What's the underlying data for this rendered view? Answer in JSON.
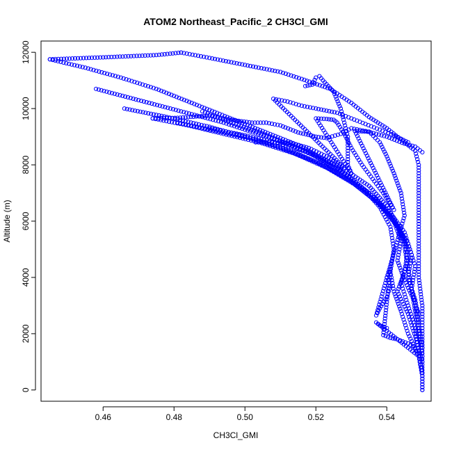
{
  "chart_data": {
    "type": "scatter",
    "title": "ATOM2 Northeast_Pacific_2 CH3Cl_GMI",
    "xlabel": "CH3Cl_GMI",
    "ylabel": "Altitude (m)",
    "xlim": [
      0.4425,
      0.5525
    ],
    "ylim": [
      -400,
      12400
    ],
    "x_ticks": [
      0.46,
      0.48,
      0.5,
      0.52,
      0.54
    ],
    "x_tick_labels": [
      "0.46",
      "0.48",
      "0.50",
      "0.52",
      "0.54"
    ],
    "y_ticks": [
      0,
      2000,
      4000,
      6000,
      8000,
      10000,
      12000
    ],
    "y_tick_labels": [
      "0",
      "2000",
      "4000",
      "6000",
      "8000",
      "10000",
      "12000"
    ],
    "grid": false,
    "marker": "open-circle",
    "marker_color": "#0000ff",
    "series": [
      {
        "trace_points": [
          [
            0.445,
            11750
          ],
          [
            0.46,
            11820
          ],
          [
            0.475,
            11900
          ],
          [
            0.482,
            11990
          ],
          [
            0.482,
            11990
          ],
          [
            0.49,
            11800
          ],
          [
            0.5,
            11550
          ],
          [
            0.51,
            11300
          ],
          [
            0.516,
            11050
          ],
          [
            0.524,
            10700
          ],
          [
            0.53,
            10200
          ],
          [
            0.535,
            9700
          ],
          [
            0.54,
            9300
          ],
          [
            0.545,
            8800
          ],
          [
            0.548,
            8500
          ],
          [
            0.549,
            8000
          ],
          [
            0.549,
            7000
          ],
          [
            0.549,
            6000
          ],
          [
            0.549,
            5000
          ],
          [
            0.549,
            4000
          ],
          [
            0.55,
            3000
          ],
          [
            0.55,
            2000
          ],
          [
            0.55,
            1000
          ],
          [
            0.55,
            0
          ],
          [
            0.445,
            11750
          ],
          [
            0.455,
            11450
          ],
          [
            0.465,
            11100
          ],
          [
            0.475,
            10700
          ],
          [
            0.485,
            10200
          ],
          [
            0.495,
            9700
          ],
          [
            0.505,
            9200
          ],
          [
            0.515,
            8700
          ],
          [
            0.525,
            8000
          ],
          [
            0.533,
            7200
          ],
          [
            0.538,
            6500
          ],
          [
            0.541,
            5800
          ],
          [
            0.542,
            5000
          ],
          [
            0.541,
            4200
          ],
          [
            0.542,
            3500
          ],
          [
            0.544,
            2800
          ],
          [
            0.546,
            2000
          ],
          [
            0.549,
            1200
          ],
          [
            0.55,
            500
          ],
          [
            0.55,
            0
          ],
          [
            0.458,
            10700
          ],
          [
            0.47,
            10300
          ],
          [
            0.482,
            9900
          ],
          [
            0.494,
            9500
          ],
          [
            0.506,
            9000
          ],
          [
            0.517,
            8500
          ],
          [
            0.527,
            7800
          ],
          [
            0.535,
            7000
          ],
          [
            0.541,
            6200
          ],
          [
            0.545,
            5400
          ],
          [
            0.546,
            4600
          ],
          [
            0.544,
            3800
          ],
          [
            0.546,
            3000
          ],
          [
            0.548,
            2200
          ],
          [
            0.549,
            1400
          ],
          [
            0.55,
            600
          ],
          [
            0.466,
            10000
          ],
          [
            0.478,
            9700
          ],
          [
            0.49,
            9350
          ],
          [
            0.5,
            9000
          ],
          [
            0.51,
            8600
          ],
          [
            0.52,
            8100
          ],
          [
            0.529,
            7500
          ],
          [
            0.537,
            6800
          ],
          [
            0.542,
            6000
          ],
          [
            0.546,
            5200
          ],
          [
            0.548,
            4400
          ],
          [
            0.547,
            3600
          ],
          [
            0.548,
            2800
          ],
          [
            0.549,
            2000
          ],
          [
            0.55,
            1200
          ],
          [
            0.474,
            9650
          ],
          [
            0.484,
            9400
          ],
          [
            0.494,
            9100
          ],
          [
            0.504,
            8800
          ],
          [
            0.514,
            8400
          ],
          [
            0.523,
            7900
          ],
          [
            0.531,
            7300
          ],
          [
            0.538,
            6600
          ],
          [
            0.543,
            5800
          ],
          [
            0.546,
            5000
          ],
          [
            0.545,
            4200
          ],
          [
            0.543,
            3500
          ],
          [
            0.546,
            2700
          ],
          [
            0.548,
            1900
          ],
          [
            0.55,
            1000
          ],
          [
            0.481,
            9500
          ],
          [
            0.492,
            9200
          ],
          [
            0.503,
            8900
          ],
          [
            0.513,
            8500
          ],
          [
            0.522,
            8000
          ],
          [
            0.53,
            7400
          ],
          [
            0.537,
            6700
          ],
          [
            0.542,
            6000
          ],
          [
            0.544,
            5300
          ],
          [
            0.543,
            4600
          ],
          [
            0.545,
            3900
          ],
          [
            0.548,
            3100
          ],
          [
            0.549,
            2300
          ],
          [
            0.55,
            1500
          ],
          [
            0.488,
            9900
          ],
          [
            0.496,
            9500
          ],
          [
            0.504,
            9150
          ],
          [
            0.512,
            8750
          ],
          [
            0.52,
            8300
          ],
          [
            0.528,
            7700
          ],
          [
            0.535,
            7000
          ],
          [
            0.541,
            6300
          ],
          [
            0.545,
            5600
          ],
          [
            0.547,
            4800
          ],
          [
            0.546,
            4000
          ],
          [
            0.548,
            3200
          ],
          [
            0.549,
            2400
          ],
          [
            0.49,
            9300
          ],
          [
            0.5,
            9050
          ],
          [
            0.51,
            8750
          ],
          [
            0.52,
            8350
          ],
          [
            0.528,
            7850
          ],
          [
            0.535,
            7250
          ],
          [
            0.54,
            6550
          ],
          [
            0.543,
            5850
          ],
          [
            0.545,
            5100
          ],
          [
            0.546,
            4300
          ],
          [
            0.547,
            3500
          ],
          [
            0.549,
            2700
          ],
          [
            0.474,
            9650
          ],
          [
            0.478,
            9660
          ],
          [
            0.481,
            9670
          ],
          [
            0.49,
            9750
          ],
          [
            0.496,
            9600
          ],
          [
            0.502,
            9500
          ],
          [
            0.506,
            9500
          ],
          [
            0.51,
            9400
          ],
          [
            0.515,
            9150
          ],
          [
            0.52,
            9000
          ],
          [
            0.523,
            8950
          ],
          [
            0.527,
            9100
          ],
          [
            0.53,
            9300
          ],
          [
            0.534,
            9200
          ],
          [
            0.54,
            9000
          ],
          [
            0.545,
            8750
          ],
          [
            0.548,
            8650
          ],
          [
            0.55,
            8450
          ],
          [
            0.503,
            8800
          ],
          [
            0.506,
            8800
          ],
          [
            0.51,
            8790
          ],
          [
            0.513,
            8780
          ],
          [
            0.518,
            8600
          ],
          [
            0.523,
            8300
          ],
          [
            0.528,
            7900
          ],
          [
            0.508,
            10350
          ],
          [
            0.512,
            10250
          ],
          [
            0.516,
            10100
          ],
          [
            0.52,
            10000
          ],
          [
            0.526,
            9850
          ],
          [
            0.53,
            9650
          ],
          [
            0.534,
            9450
          ],
          [
            0.538,
            9250
          ],
          [
            0.542,
            9050
          ],
          [
            0.546,
            8800
          ],
          [
            0.517,
            10800
          ],
          [
            0.519,
            10850
          ],
          [
            0.52,
            11100
          ],
          [
            0.521,
            11150
          ],
          [
            0.522,
            11000
          ],
          [
            0.525,
            10600
          ],
          [
            0.527,
            10000
          ],
          [
            0.528,
            9500
          ],
          [
            0.529,
            9000
          ],
          [
            0.529,
            8500
          ],
          [
            0.529,
            8000
          ],
          [
            0.53,
            7700
          ],
          [
            0.52,
            9650
          ],
          [
            0.523,
            9630
          ],
          [
            0.525,
            9600
          ],
          [
            0.526,
            9500
          ],
          [
            0.528,
            9100
          ],
          [
            0.53,
            8600
          ],
          [
            0.533,
            8000
          ],
          [
            0.536,
            7500
          ],
          [
            0.539,
            7000
          ],
          [
            0.542,
            6400
          ],
          [
            0.531,
            9200
          ],
          [
            0.533,
            9190
          ],
          [
            0.535,
            9180
          ],
          [
            0.538,
            8800
          ],
          [
            0.54,
            8300
          ],
          [
            0.542,
            7700
          ],
          [
            0.544,
            7000
          ],
          [
            0.545,
            6200
          ],
          [
            0.537,
            2650
          ],
          [
            0.538,
            2900
          ],
          [
            0.54,
            3300
          ],
          [
            0.541,
            3700
          ],
          [
            0.54,
            4000
          ],
          [
            0.541,
            4300
          ],
          [
            0.539,
            1950
          ],
          [
            0.541,
            1850
          ],
          [
            0.543,
            1800
          ],
          [
            0.546,
            1650
          ],
          [
            0.548,
            1500
          ],
          [
            0.549,
            1200
          ],
          [
            0.537,
            2400
          ],
          [
            0.538,
            2300
          ],
          [
            0.54,
            2200
          ]
        ]
      }
    ]
  }
}
